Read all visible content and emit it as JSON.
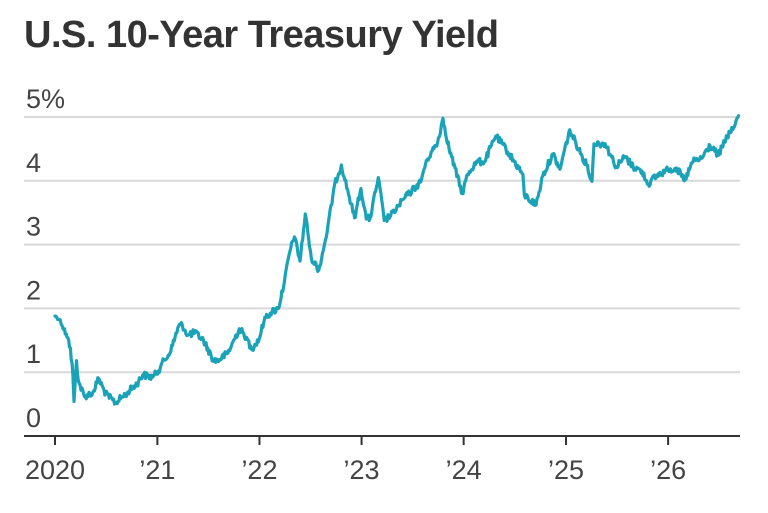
{
  "chart_data": {
    "type": "line",
    "title": "U.S. 10-Year Treasury Yield",
    "xlabel": "",
    "ylabel": "",
    "ylim": [
      0,
      5
    ],
    "xlim": [
      "2020-01-01",
      "2026-09-15"
    ],
    "y_ticks": [
      {
        "value": 0,
        "label": "0"
      },
      {
        "value": 1,
        "label": "1"
      },
      {
        "value": 2,
        "label": "2"
      },
      {
        "value": 3,
        "label": "3"
      },
      {
        "value": 4,
        "label": "4"
      },
      {
        "value": 5,
        "label": "5%"
      }
    ],
    "x_ticks": [
      {
        "value": "2020-01-01",
        "label": "2020"
      },
      {
        "value": "2021-01-01",
        "label": "’21"
      },
      {
        "value": "2022-01-01",
        "label": "’22"
      },
      {
        "value": "2023-01-01",
        "label": "’23"
      },
      {
        "value": "2024-01-01",
        "label": "’24"
      },
      {
        "value": "2025-01-01",
        "label": "’25"
      },
      {
        "value": "2026-01-01",
        "label": "’26"
      }
    ],
    "grid": true,
    "line_color": "#1aa3b8",
    "grid_color": "#d9d9d9",
    "series": [
      {
        "x": [
          "2020-01-01",
          "2020-01-20",
          "2020-02-10",
          "2020-02-25",
          "2020-03-05",
          "2020-03-09",
          "2020-03-18",
          "2020-03-25",
          "2020-04-15",
          "2020-05-15",
          "2020-06-05",
          "2020-06-30",
          "2020-08-04",
          "2020-09-15",
          "2020-10-20",
          "2020-11-10",
          "2020-12-15",
          "2021-01-05",
          "2021-01-15",
          "2021-02-15",
          "2021-03-18",
          "2021-03-31",
          "2021-04-20",
          "2021-05-15",
          "2021-06-15",
          "2021-07-19",
          "2021-08-04",
          "2021-09-10",
          "2021-10-21",
          "2021-11-15",
          "2021-12-03",
          "2021-12-31",
          "2022-01-20",
          "2022-02-15",
          "2022-03-10",
          "2022-03-31",
          "2022-04-20",
          "2022-05-06",
          "2022-05-26",
          "2022-06-14",
          "2022-07-05",
          "2022-08-01",
          "2022-08-31",
          "2022-09-27",
          "2022-10-21",
          "2022-11-15",
          "2022-12-07",
          "2022-12-30",
          "2023-01-18",
          "2023-02-01",
          "2023-03-02",
          "2023-03-23",
          "2023-04-15",
          "2023-05-15",
          "2023-06-15",
          "2023-07-31",
          "2023-08-21",
          "2023-09-30",
          "2023-10-19",
          "2023-11-10",
          "2023-12-01",
          "2023-12-27",
          "2024-01-15",
          "2024-02-15",
          "2024-03-15",
          "2024-04-25",
          "2024-05-31",
          "2024-06-30",
          "2024-07-31",
          "2024-08-05",
          "2024-09-16",
          "2024-10-10",
          "2024-11-15",
          "2024-12-10",
          "2025-01-14",
          "2025-02-15",
          "2025-03-15",
          "2025-04-04",
          "2025-04-11",
          "2025-05-21",
          "2025-06-30",
          "2025-07-31",
          "2025-08-29",
          "2025-09-30",
          "2025-10-22",
          "2025-11-20",
          "2025-12-31",
          "2026-01-31",
          "2026-02-28",
          "2026-03-31",
          "2026-04-30",
          "2026-05-31",
          "2026-06-30",
          "2026-07-31",
          "2026-08-20",
          "2026-09-10"
        ],
        "y": [
          1.88,
          1.82,
          1.6,
          1.38,
          0.95,
          0.54,
          1.18,
          0.85,
          0.62,
          0.68,
          0.9,
          0.66,
          0.52,
          0.68,
          0.82,
          0.96,
          0.92,
          1.02,
          1.12,
          1.3,
          1.72,
          1.74,
          1.58,
          1.62,
          1.5,
          1.2,
          1.18,
          1.3,
          1.68,
          1.55,
          1.36,
          1.52,
          1.86,
          1.95,
          2.0,
          2.42,
          2.9,
          3.12,
          2.74,
          3.48,
          2.8,
          2.6,
          3.2,
          3.95,
          4.25,
          3.8,
          3.42,
          3.88,
          3.4,
          3.42,
          4.05,
          3.38,
          3.45,
          3.62,
          3.78,
          3.98,
          4.32,
          4.6,
          4.98,
          4.5,
          4.2,
          3.8,
          4.1,
          4.3,
          4.3,
          4.7,
          4.5,
          4.3,
          4.1,
          3.78,
          3.62,
          4.08,
          4.42,
          4.18,
          4.8,
          4.5,
          4.25,
          3.99,
          4.58,
          4.58,
          4.22,
          4.38,
          4.22,
          4.15,
          3.95,
          4.08,
          4.17,
          4.2,
          4.0,
          4.3,
          4.35,
          4.55,
          4.4,
          4.7,
          4.8,
          5.02
        ]
      }
    ]
  }
}
